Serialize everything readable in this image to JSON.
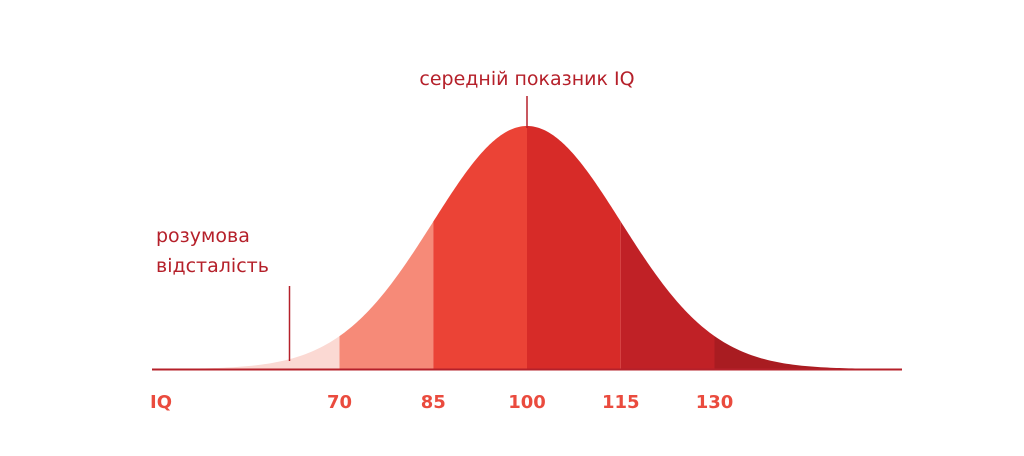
{
  "chart_data": {
    "type": "area",
    "title": "",
    "xlabel": "",
    "ylabel": "",
    "distribution": {
      "mean": 100,
      "sd": 15
    },
    "xlim": [
      40,
      160
    ],
    "axis_label": "IQ",
    "ticks": [
      {
        "value": 70,
        "label": "70"
      },
      {
        "value": 85,
        "label": "85"
      },
      {
        "value": 100,
        "label": "100"
      },
      {
        "value": 115,
        "label": "115"
      },
      {
        "value": 130,
        "label": "130"
      }
    ],
    "bands": [
      {
        "from": 40,
        "to": 70,
        "color": "#fbd9d3"
      },
      {
        "from": 70,
        "to": 85,
        "color": "#f68a78"
      },
      {
        "from": 85,
        "to": 100,
        "color": "#eb4336"
      },
      {
        "from": 100,
        "to": 115,
        "color": "#d72b28"
      },
      {
        "from": 115,
        "to": 130,
        "color": "#c02126"
      },
      {
        "from": 130,
        "to": 160,
        "color": "#a91c21"
      }
    ],
    "annotations": [
      {
        "x": 100,
        "lines": [
          "середній показник IQ"
        ]
      },
      {
        "x": 62,
        "lines": [
          "розумова",
          "відсталість"
        ]
      }
    ],
    "grid": false,
    "legend": "none"
  }
}
